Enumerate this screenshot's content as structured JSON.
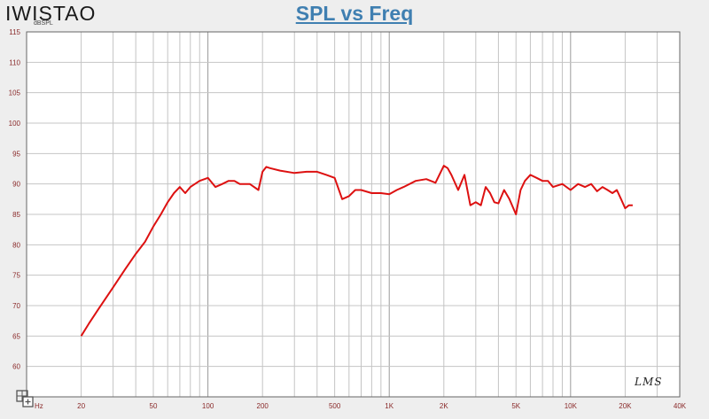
{
  "brand": "IWISTAO",
  "watermark": "LMS",
  "icons": {
    "corner": "grid-plus-icon"
  },
  "colors": {
    "curve": "#dd1111",
    "title": "#3f7fb1",
    "tick_labels": "#8a2a2a"
  },
  "chart_data": {
    "type": "line",
    "title": "SPL vs Freq",
    "ylabel": "dBSPL",
    "xunit": "Hz",
    "xscale": "log",
    "xlim": [
      10,
      40000
    ],
    "ylim": [
      55,
      115
    ],
    "grid": true,
    "yticks": [
      115,
      110,
      105,
      100,
      95,
      90,
      85,
      80,
      75,
      70,
      65,
      60
    ],
    "xticks": [
      {
        "value": 20,
        "label": "20"
      },
      {
        "value": 50,
        "label": "50"
      },
      {
        "value": 100,
        "label": "100"
      },
      {
        "value": 200,
        "label": "200"
      },
      {
        "value": 500,
        "label": "500"
      },
      {
        "value": 1000,
        "label": "1K"
      },
      {
        "value": 2000,
        "label": "2K"
      },
      {
        "value": 5000,
        "label": "5K"
      },
      {
        "value": 10000,
        "label": "10K"
      },
      {
        "value": 20000,
        "label": "20K"
      },
      {
        "value": 40000,
        "label": "40K"
      }
    ],
    "series": [
      {
        "x": [
          20,
          22,
          25,
          30,
          35,
          40,
          45,
          50,
          55,
          60,
          65,
          70,
          75,
          80,
          90,
          100,
          110,
          120,
          130,
          140,
          150,
          170,
          190,
          200,
          210,
          220,
          250,
          300,
          350,
          400,
          450,
          500,
          550,
          600,
          650,
          700,
          800,
          900,
          1000,
          1100,
          1200,
          1400,
          1600,
          1800,
          2000,
          2100,
          2200,
          2400,
          2600,
          2800,
          3000,
          3200,
          3400,
          3600,
          3800,
          4000,
          4300,
          4600,
          5000,
          5300,
          5600,
          6000,
          6500,
          7000,
          7500,
          8000,
          9000,
          10000,
          11000,
          12000,
          13000,
          14000,
          15000,
          16000,
          17000,
          18000,
          19000,
          20000,
          21000,
          22000
        ],
        "y": [
          65,
          67,
          69.5,
          73,
          76,
          78.5,
          80.5,
          83,
          85,
          87,
          88.5,
          89.5,
          88.5,
          89.5,
          90.5,
          91,
          89.5,
          90,
          90.5,
          90.5,
          90,
          90,
          89,
          92,
          92.8,
          92.6,
          92.2,
          91.8,
          92,
          92,
          91.5,
          91,
          87.5,
          88,
          89,
          89,
          88.5,
          88.5,
          88.3,
          89,
          89.5,
          90.5,
          90.8,
          90.2,
          93,
          92.6,
          91.5,
          89,
          91.5,
          86.5,
          87,
          86.5,
          89.5,
          88.5,
          87,
          86.8,
          89,
          87.5,
          85,
          89,
          90.5,
          91.5,
          91,
          90.5,
          90.5,
          89.5,
          90,
          89,
          90,
          89.5,
          90,
          88.8,
          89.5,
          89,
          88.5,
          89,
          87.5,
          86,
          86.5,
          86.5
        ]
      }
    ]
  }
}
